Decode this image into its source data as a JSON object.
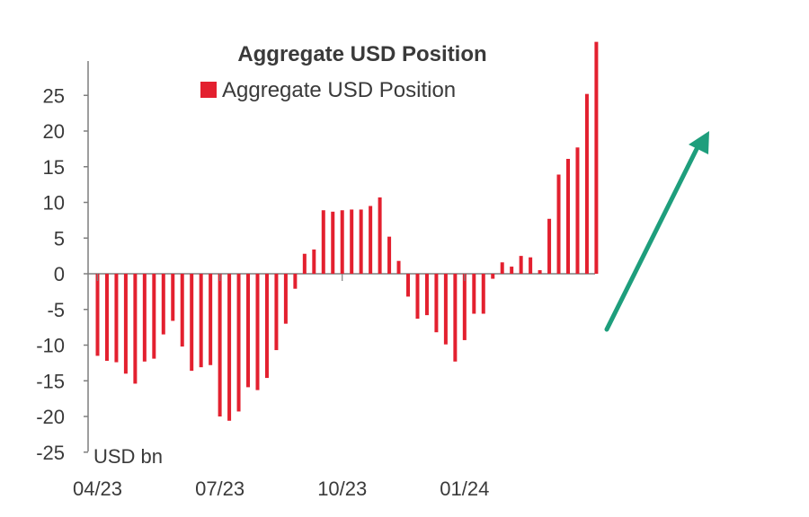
{
  "chart_data": {
    "type": "bar",
    "title": "Aggregate USD Position",
    "unit_label": "USD bn",
    "legend": {
      "entries": [
        "Aggregate USD Position"
      ],
      "placement": "top-center"
    },
    "colors": {
      "bars": "#e3202f",
      "axis": "#7f7f7f",
      "arrow": "#1e9e7c",
      "text": "#3a3a3a"
    },
    "ylim": [
      -25,
      30
    ],
    "y_ticks": [
      -25,
      -20,
      -15,
      -10,
      -5,
      0,
      5,
      10,
      15,
      20,
      25
    ],
    "y_tick_labels": [
      "-25",
      "-20",
      "-15",
      "-10",
      "-5",
      "0",
      "5",
      "10",
      "15",
      "20",
      "25"
    ],
    "x_tick_labels": [
      "04/23",
      "07/23",
      "10/23",
      "01/24"
    ],
    "grid": false,
    "series": [
      {
        "name": "Aggregate USD Position",
        "values": [
          -11.5,
          -12.2,
          -12.4,
          -14.0,
          -15.4,
          -12.3,
          -11.9,
          -8.5,
          -6.6,
          -10.2,
          -13.6,
          -13.1,
          -12.8,
          -20.0,
          -20.6,
          -19.3,
          -15.9,
          -16.3,
          -14.6,
          -10.7,
          -7.0,
          -2.1,
          2.8,
          3.4,
          8.9,
          8.7,
          8.9,
          9.0,
          9.0,
          9.5,
          10.7,
          5.2,
          1.8,
          -3.2,
          -6.3,
          -5.8,
          -8.2,
          -9.9,
          -12.3,
          -9.3,
          -5.6,
          -5.6,
          -0.7,
          1.6,
          1.0,
          2.5,
          2.3,
          0.5,
          7.7,
          13.9,
          16.1,
          17.7,
          25.2,
          32.5
        ]
      }
    ],
    "annotation": {
      "type": "upward-trend-arrow",
      "color": "#1e9e7c"
    }
  }
}
